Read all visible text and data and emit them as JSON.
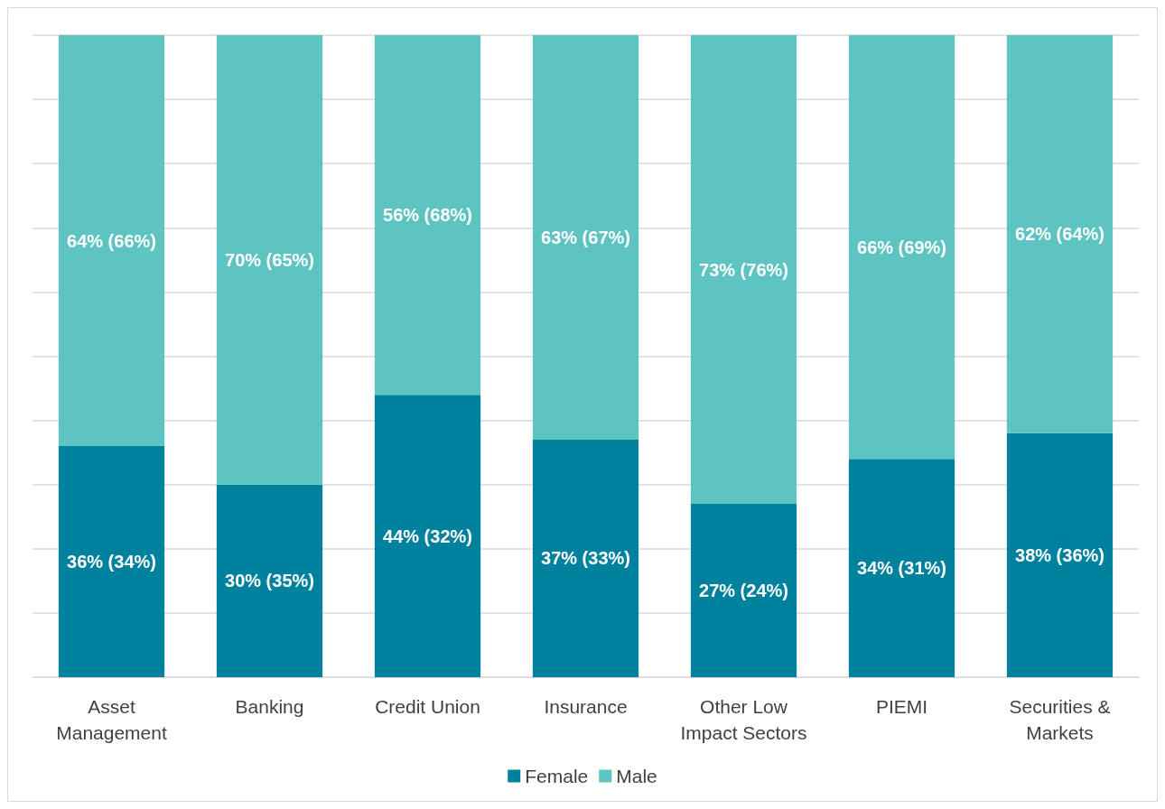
{
  "chart_data": {
    "type": "bar",
    "stacked": true,
    "categories": [
      "Asset\nManagement",
      "Banking",
      "Credit Union",
      "Insurance",
      "Other Low\nImpact Sectors",
      "PIEMI",
      "Securities &\nMarkets"
    ],
    "series": [
      {
        "name": "Female",
        "color": "#00829e",
        "values": [
          36,
          30,
          44,
          37,
          27,
          34,
          38
        ],
        "value_labels": [
          "36% (34%)",
          "30% (35%)",
          "44% (32%)",
          "37% (33%)",
          "27% (24%)",
          "34% (31%)",
          "38% (36%)"
        ]
      },
      {
        "name": "Male",
        "color": "#5ec4c2",
        "values": [
          64,
          70,
          56,
          63,
          73,
          66,
          62
        ],
        "value_labels": [
          "64% (66%)",
          "70% (65%)",
          "56% (68%)",
          "63% (67%)",
          "73% (76%)",
          "66% (69%)",
          "62% (64%)"
        ]
      }
    ],
    "ylim": [
      0,
      100
    ],
    "yticks": [
      {
        "value": 0,
        "label": null
      },
      {
        "value": 10,
        "label": null
      },
      {
        "value": 20,
        "label": null
      },
      {
        "value": 30,
        "label": null
      },
      {
        "value": 40,
        "label": null
      },
      {
        "value": 50,
        "label": null
      },
      {
        "value": 60,
        "label": null
      },
      {
        "value": 70,
        "label": null
      },
      {
        "value": 80,
        "label": null
      },
      {
        "value": 90,
        "label": null
      },
      {
        "value": 100,
        "label": null
      }
    ],
    "grid": true,
    "legend": "bottom",
    "tick_labels": "x"
  }
}
